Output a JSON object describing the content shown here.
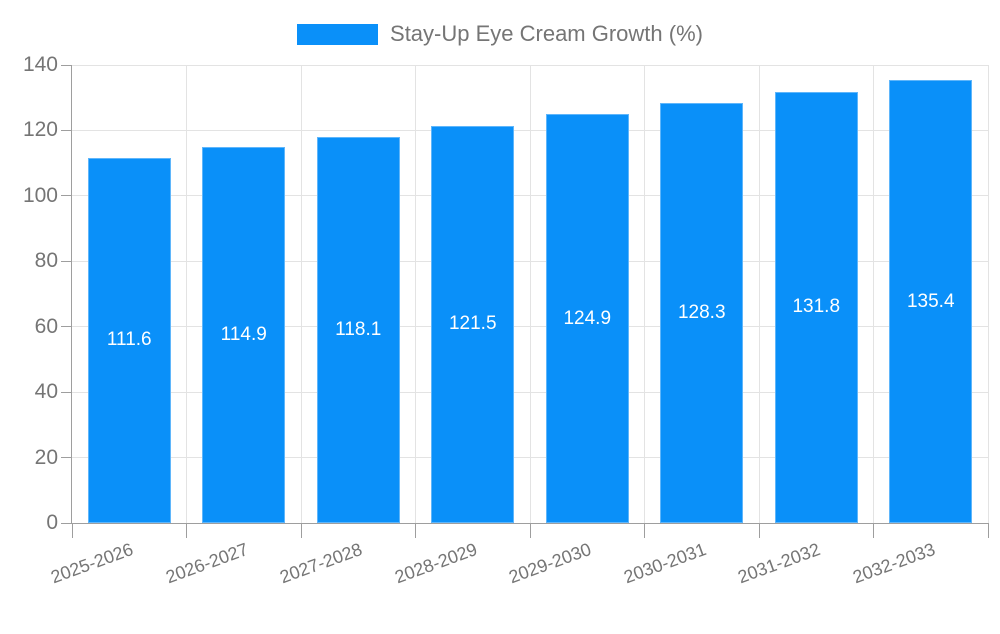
{
  "chart_data": {
    "type": "bar",
    "title": "Stay-Up Eye Cream Growth (%)",
    "legend": {
      "label": "Stay-Up Eye Cream Growth (%)",
      "position": "top-center"
    },
    "categories": [
      "2025-2026",
      "2026-2027",
      "2027-2028",
      "2028-2029",
      "2029-2030",
      "2030-2031",
      "2031-2032",
      "2032-2033"
    ],
    "values": [
      111.6,
      114.9,
      118.1,
      121.5,
      124.9,
      128.3,
      131.8,
      135.4
    ],
    "value_labels": [
      "111.6",
      "114.9",
      "118.1",
      "121.5",
      "124.9",
      "128.3",
      "131.8",
      "135.4"
    ],
    "xlabel": "",
    "ylabel": "",
    "ylim": [
      0,
      140
    ],
    "yticks": [
      0,
      20,
      40,
      60,
      80,
      100,
      120,
      140
    ],
    "grid": "both",
    "x_label_rotation_deg": -20,
    "colors": {
      "bar": "#0a90f9",
      "value_text": "#ffffff",
      "axis_line": "#9e9e9e",
      "gridline": "#e3e3e3",
      "axis_text": "#757575",
      "background": "#ffffff"
    }
  }
}
